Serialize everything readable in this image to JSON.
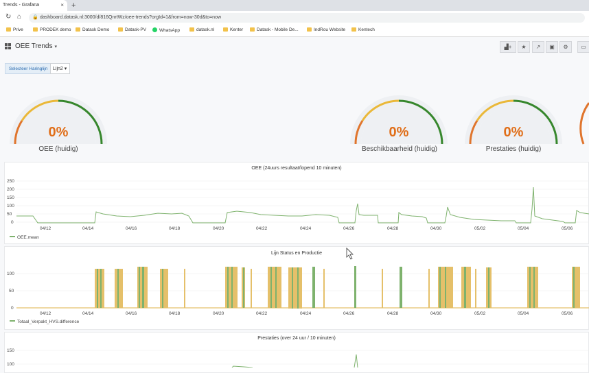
{
  "browser": {
    "tab_title": "Trends - Grafana",
    "tab_close": "×",
    "new_tab": "+",
    "url": "dashboard.datask.nl:3000/d/816QnrtWz/oee-trends?orgId=1&from=now-30d&to=now",
    "bookmarks": [
      "Prive",
      "PRODEK demo",
      "Datask Demo",
      "Datask-PV",
      "WhatsApp",
      "datask.nl",
      "Kenter",
      "Datask - Mobile De...",
      "IndRou Website",
      "Kentech"
    ]
  },
  "dashboard": {
    "title": "OEE Trends",
    "variable_label": "Selecteer Haringlijn",
    "variable_value": "Lijn2"
  },
  "gauges": [
    {
      "value": "0%",
      "label": "OEE (huidig)"
    },
    {
      "value": "0%",
      "label": "Beschikbaarheid (huidig)"
    },
    {
      "value": "0%",
      "label": "Prestaties (huidig)"
    }
  ],
  "panels": {
    "oee": {
      "title": "OEE (24uurs resultaat/lopend 10 minuten)",
      "legend": "OEE.mean",
      "yticks": [
        "250",
        "200",
        "150",
        "100",
        "50",
        "0"
      ],
      "xticks": [
        "04/12",
        "04/14",
        "04/16",
        "04/18",
        "04/20",
        "04/22",
        "04/24",
        "04/26",
        "04/28",
        "04/30",
        "05/02",
        "05/04",
        "05/06"
      ]
    },
    "status": {
      "title": "Lijn Status en Productie",
      "legend": "Totaal_Verpakt_HVS.difference",
      "yticks": [
        "100",
        "50",
        "0"
      ],
      "xticks": [
        "04/12",
        "04/14",
        "04/16",
        "04/18",
        "04/20",
        "04/22",
        "04/24",
        "04/26",
        "04/28",
        "04/30",
        "05/02",
        "05/04",
        "05/06"
      ]
    },
    "prestaties": {
      "title": "Prestaties (over 24 uur / 10 minuten)",
      "yticks": [
        "150",
        "100"
      ]
    }
  },
  "colors": {
    "gauge_green": "#37872d",
    "gauge_orange": "#e0752d",
    "gauge_yellow": "#eab839",
    "series_green": "#7eb26d",
    "bar_yellow": "#e5c06a"
  }
}
